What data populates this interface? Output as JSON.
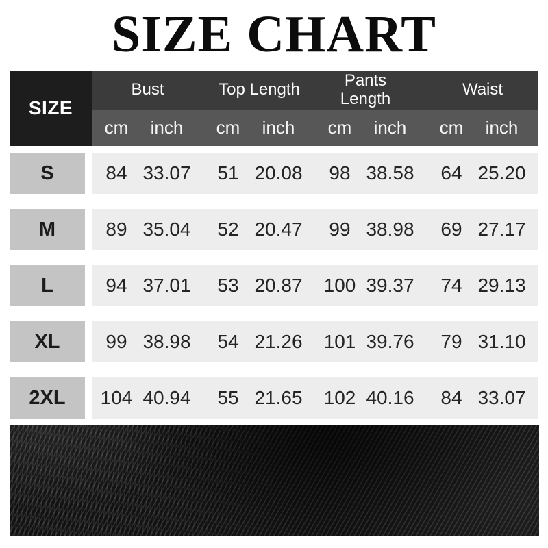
{
  "title": "SIZE CHART",
  "table": {
    "size_header": "SIZE",
    "unit_cm": "cm",
    "unit_inch": "inch",
    "groups": [
      {
        "label": "Bust"
      },
      {
        "label": "Top Length"
      },
      {
        "label": "Pants Length"
      },
      {
        "label": "Waist"
      }
    ],
    "rows": [
      {
        "size": "S",
        "values": [
          "84",
          "33.07",
          "51",
          "20.08",
          "98",
          "38.58",
          "64",
          "25.20"
        ]
      },
      {
        "size": "M",
        "values": [
          "89",
          "35.04",
          "52",
          "20.47",
          "99",
          "38.98",
          "69",
          "27.17"
        ]
      },
      {
        "size": "L",
        "values": [
          "94",
          "37.01",
          "53",
          "20.87",
          "100",
          "39.37",
          "74",
          "29.13"
        ]
      },
      {
        "size": "XL",
        "values": [
          "99",
          "38.98",
          "54",
          "21.26",
          "101",
          "39.76",
          "79",
          "31.10"
        ]
      },
      {
        "size": "2XL",
        "values": [
          "104",
          "40.94",
          "55",
          "21.65",
          "102",
          "40.16",
          "84",
          "33.07"
        ]
      }
    ]
  },
  "colors": {
    "size_header_bg": "#1d1d1d",
    "group_header_bg": "#3b3b3b",
    "unit_row_bg": "#575757",
    "size_label_bg": "#c4c4c4",
    "data_cell_bg": "#ededed",
    "title_text": "#0c0c0c",
    "header_text": "#ffffff",
    "fabric_base": "#121212"
  },
  "footer_image": "black-twill-fabric-texture"
}
